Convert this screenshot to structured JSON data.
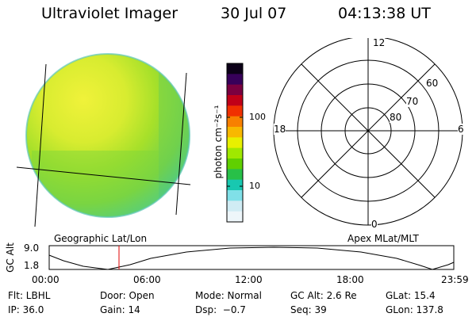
{
  "header": {
    "title": "Ultraviolet Imager",
    "date": "30 Jul 07",
    "time": "04:13:38 UT"
  },
  "colorbar": {
    "unit_label": "photon cm⁻²s⁻¹",
    "ticks": [
      "100",
      "10"
    ],
    "colors": [
      "#0c0018",
      "#37005a",
      "#7a0040",
      "#c00018",
      "#f03000",
      "#f88000",
      "#f8b800",
      "#e8f000",
      "#a0e800",
      "#60d000",
      "#28c048",
      "#18c8b0",
      "#80e0e8",
      "#d0ecf4",
      "#eef6fa"
    ]
  },
  "polar": {
    "mlt_labels": {
      "top": "12",
      "left": "18",
      "right": "6",
      "bottom": "0"
    },
    "mlat_labels": [
      "60",
      "70",
      "80"
    ]
  },
  "map_labels": {
    "left": "Geographic Lat/Lon",
    "right": "Apex MLat/MLT"
  },
  "altitude_plot": {
    "y_label": "GC Alt",
    "y_ticks": [
      "9.0",
      "1.8"
    ],
    "x_ticks": [
      "00:00",
      "06:00",
      "12:00",
      "18:00",
      "23:59"
    ],
    "current_time_marker": "04:13",
    "marker_color": "#e00000"
  },
  "info": {
    "row1": [
      "Flt: LBHL",
      "Door: Open",
      "Mode: Normal",
      "GC Alt: 2.6 Re",
      "GLat: 15.4"
    ],
    "row2": [
      "IP: 36.0",
      "Gain: 14",
      "Dsp:  −0.7",
      "Seq: 39",
      "GLon: 137.8"
    ]
  }
}
